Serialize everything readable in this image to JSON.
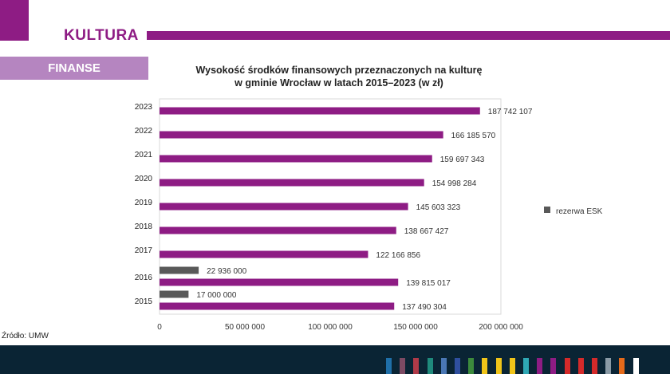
{
  "header": {
    "section_title": "KULTURA",
    "subsection": "FINANSE"
  },
  "source_note": "Źródło: UMW",
  "colors": {
    "brand_purple": "#8e1c84",
    "tab_lilac": "#b585c0",
    "reserve_gray": "#595959",
    "footer_navy": "#0a2434"
  },
  "footer_swatches": [
    "#1f6fa8",
    "#7c4a63",
    "#b03a48",
    "#1f8a7c",
    "#4a77b4",
    "#2f4f9e",
    "#3c8a3c",
    "#f0c419",
    "#f0c419",
    "#f0c419",
    "#2fa8b5",
    "#8e1c84",
    "#8e1c84",
    "#d42a2a",
    "#d42a2a",
    "#d42a2a",
    "#8a9aa5",
    "#e56a1a",
    "#ffffff"
  ],
  "chart_data": {
    "type": "bar",
    "orientation": "horizontal",
    "title_line1": "Wysokość środków finansowych przeznaczonych na kulturę",
    "title_line2": "w gminie Wrocław w latach 2015–2023 (w zł)",
    "categories": [
      "2023",
      "2022",
      "2021",
      "2020",
      "2019",
      "2018",
      "2017",
      "2016",
      "2015"
    ],
    "series": [
      {
        "values": [
          187742107,
          166185570,
          159697343,
          154998284,
          145603323,
          138667427,
          122166856,
          139815017,
          137490304
        ],
        "labels": [
          "187 742 107",
          "166 185 570",
          "159 697 343",
          "154 998 284",
          "145 603 323",
          "138 667 427",
          "122 166 856",
          "139 815 017",
          "137 490 304"
        ],
        "color": "#8e1c84"
      },
      {
        "name": "rezerwa ESK",
        "values": [
          null,
          null,
          null,
          null,
          null,
          null,
          null,
          22936000,
          17000000
        ],
        "labels": [
          null,
          null,
          null,
          null,
          null,
          null,
          null,
          "22 936 000",
          "17 000 000"
        ],
        "color": "#595959"
      }
    ],
    "xlim": [
      0,
      200000000
    ],
    "xticks": [
      0,
      50000000,
      100000000,
      150000000,
      200000000
    ],
    "xtick_labels": [
      "0",
      "50 000 000",
      "100 000 000",
      "150 000 000",
      "200 000 000"
    ],
    "legend_position": "right",
    "grid": false
  }
}
